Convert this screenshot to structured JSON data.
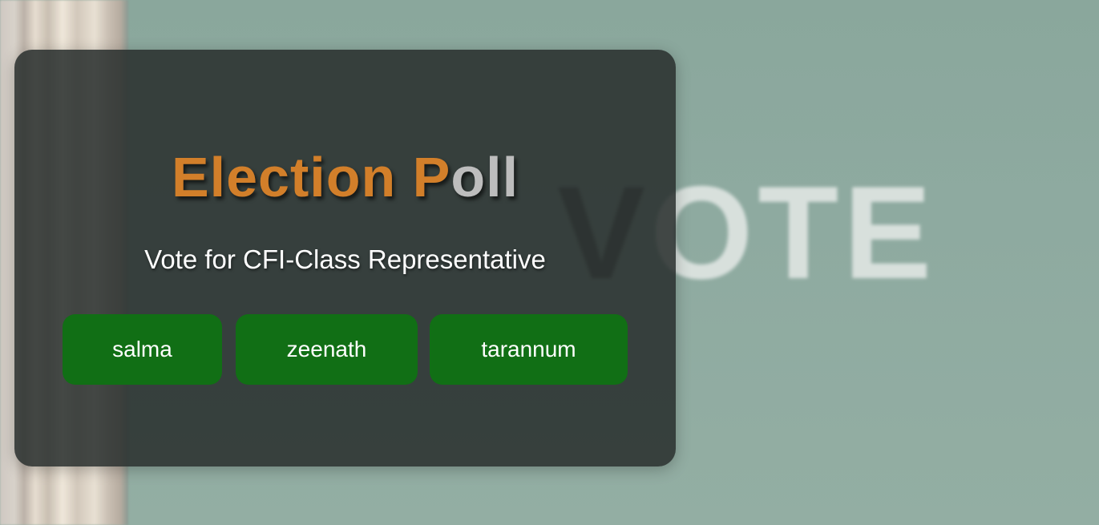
{
  "background": {
    "watermark_text": "VOTE"
  },
  "poll": {
    "title_orange": "Election P",
    "title_silver": "oll",
    "subtitle": "Vote for CFI-Class Representative",
    "candidates": [
      {
        "label": "salma"
      },
      {
        "label": "zeenath"
      },
      {
        "label": "tarannum"
      }
    ]
  },
  "colors": {
    "accent_orange": "#d27f2a",
    "button_green": "#116f15",
    "card_bg": "#2a2f2e"
  }
}
